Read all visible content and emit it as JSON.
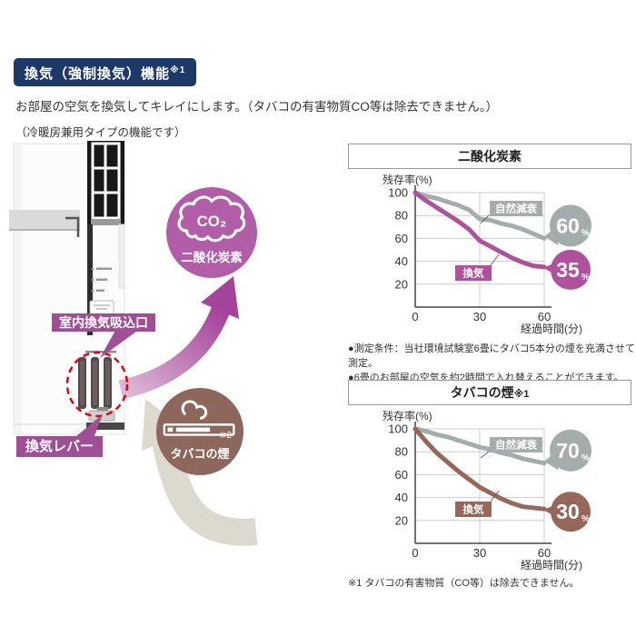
{
  "header": {
    "badge": "換気（強制換気）機能",
    "badge_note": "※1",
    "intro1": "お部屋の空気を換気してキレイにします。（タバコの有害物質CO等は除去できません。）",
    "intro2": "（冷暖房兼用タイプの機能です）"
  },
  "illustration": {
    "co2_bubble": {
      "formula": "CO₂",
      "label": "二酸化炭素",
      "color": "#b25da8"
    },
    "intake_label": "室内換気吸込口",
    "lever_label": "換気レバー",
    "smoke_bubble": {
      "note": "※2",
      "label": "タバコの煙",
      "color": "#8d675b"
    },
    "label_bg_color": "#9e4f96",
    "highlight_circle_color": "#e50012"
  },
  "notes": {
    "line1": "●測定条件：当社環境試験室6畳にタバコ5本分の煙を充満させて測定。",
    "line2": "●6畳のお部屋の空気を約2時間で入れ替えることができます。"
  },
  "footnote": "※1 タバコの有害物質（CO等）は除去できません。",
  "chart_data": [
    {
      "type": "line",
      "title": "二酸化炭素",
      "title_note": "",
      "ylabel": "残存率(%)",
      "xlabel": "経過時間(分)",
      "xlim": [
        0,
        60
      ],
      "ylim": [
        0,
        100
      ],
      "x_ticks": [
        0,
        30,
        60
      ],
      "y_ticks": [
        100,
        80,
        60,
        40,
        20
      ],
      "grid": true,
      "legend_position": "inline-labels",
      "series": [
        {
          "name": "自然減衰",
          "color": "#a5acac",
          "x": [
            0,
            5,
            10,
            15,
            20,
            25,
            30,
            35,
            40,
            45,
            50,
            55,
            60
          ],
          "values": [
            100,
            97,
            95,
            92,
            89,
            85,
            77,
            76,
            73,
            71,
            68,
            64,
            60
          ],
          "end_label": "60",
          "end_unit": "%"
        },
        {
          "name": "換気",
          "color": "#b0519e",
          "x": [
            0,
            5,
            10,
            15,
            20,
            25,
            30,
            35,
            40,
            45,
            50,
            55,
            60
          ],
          "values": [
            100,
            93,
            87,
            81,
            75,
            68,
            58,
            53,
            48,
            43,
            39,
            36,
            35
          ],
          "end_label": "35",
          "end_unit": "%"
        }
      ]
    },
    {
      "type": "line",
      "title": "タバコの煙",
      "title_note": "※1",
      "ylabel": "残存率(%)",
      "xlabel": "経過時間(分)",
      "xlim": [
        0,
        60
      ],
      "ylim": [
        0,
        100
      ],
      "x_ticks": [
        0,
        30,
        60
      ],
      "y_ticks": [
        100,
        80,
        60,
        40,
        20
      ],
      "grid": true,
      "legend_position": "inline-labels",
      "series": [
        {
          "name": "自然減衰",
          "color": "#a5acac",
          "x": [
            0,
            5,
            10,
            15,
            20,
            25,
            30,
            35,
            40,
            45,
            50,
            55,
            60
          ],
          "values": [
            100,
            98,
            95,
            93,
            90,
            87,
            84,
            82,
            79,
            77,
            74,
            72,
            70
          ],
          "end_label": "70",
          "end_unit": "%"
        },
        {
          "name": "換気",
          "color": "#96685a",
          "x": [
            0,
            5,
            10,
            15,
            20,
            25,
            30,
            35,
            40,
            45,
            50,
            55,
            60
          ],
          "values": [
            100,
            89,
            79,
            71,
            63,
            56,
            49,
            44,
            39,
            35,
            32,
            31,
            30
          ],
          "end_label": "30",
          "end_unit": "%"
        }
      ]
    }
  ]
}
